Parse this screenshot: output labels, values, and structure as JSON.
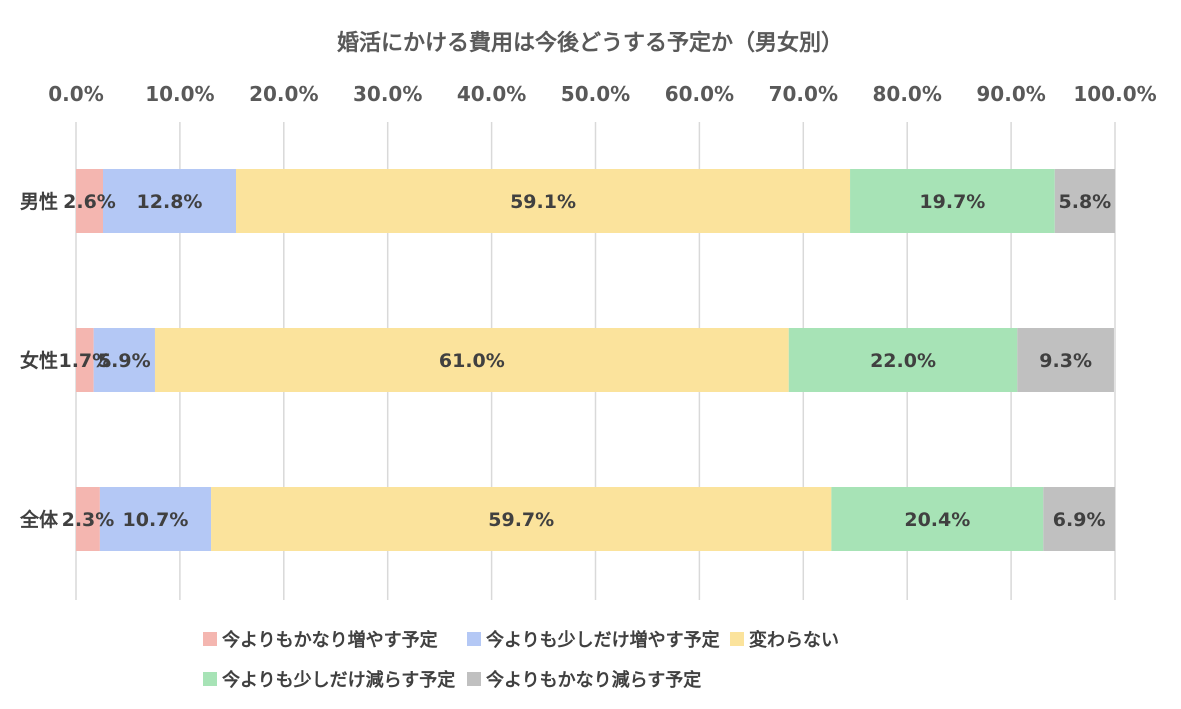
{
  "chart_data": {
    "type": "bar",
    "orientation": "horizontal",
    "stacked": true,
    "title": "婚活にかける費用は今後どうする予定か（男女別）",
    "categories": [
      "男性",
      "女性",
      "全体"
    ],
    "series": [
      {
        "name": "今よりもかなり増やす予定",
        "color": "#f4b6b0",
        "values": [
          2.6,
          1.7,
          2.3
        ],
        "labels": [
          "2.6%",
          "1.7%",
          "2.3%"
        ]
      },
      {
        "name": "今よりも少しだけ増やす予定",
        "color": "#b4c8f5",
        "values": [
          12.8,
          5.9,
          10.7
        ],
        "labels": [
          "12.8%",
          "5.9%",
          "10.7%"
        ]
      },
      {
        "name": "変わらない",
        "color": "#fbe39c",
        "values": [
          59.1,
          61.0,
          59.7
        ],
        "labels": [
          "59.1%",
          "61.0%",
          "59.7%"
        ]
      },
      {
        "name": "今よりも少しだけ減らす予定",
        "color": "#a7e3b6",
        "values": [
          19.7,
          22.0,
          20.4
        ],
        "labels": [
          "19.7%",
          "22.0%",
          "20.4%"
        ]
      },
      {
        "name": "今よりもかなり減らす予定",
        "color": "#c0c0c0",
        "values": [
          5.8,
          9.3,
          6.9
        ],
        "labels": [
          "5.8%",
          "9.3%",
          "6.9%"
        ]
      }
    ],
    "xlim": [
      0,
      100
    ],
    "ticks": [
      0,
      10,
      20,
      30,
      40,
      50,
      60,
      70,
      80,
      90,
      100
    ],
    "tick_labels": [
      "0.0%",
      "10.0%",
      "20.0%",
      "30.0%",
      "40.0%",
      "50.0%",
      "60.0%",
      "70.0%",
      "80.0%",
      "90.0%",
      "100.0%"
    ],
    "axis_position": "top",
    "grid": true,
    "legend_position": "bottom"
  }
}
